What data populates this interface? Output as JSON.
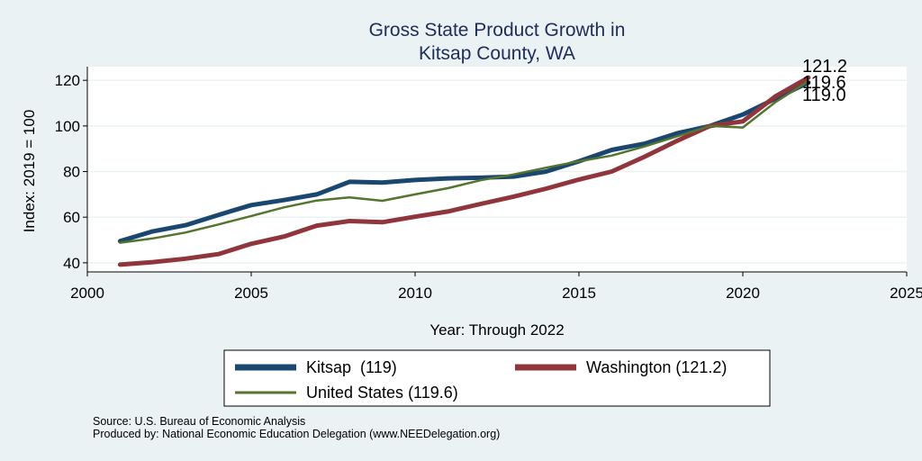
{
  "chart_data": {
    "type": "line",
    "title": [
      "Gross State Product Growth in",
      "Kitsap County, WA"
    ],
    "xlabel": "Year: Through 2022",
    "ylabel": "Index: 2019 = 100",
    "xlim": [
      2000,
      2025
    ],
    "ylim": [
      36,
      126
    ],
    "xticks": [
      2000,
      2005,
      2010,
      2015,
      2020,
      2025
    ],
    "yticks": [
      40,
      60,
      80,
      100,
      120
    ],
    "grid": true,
    "legend_position": "bottom",
    "series": [
      {
        "name": "Kitsap",
        "legend_label": "Kitsap  (119)",
        "color": "#1a476f",
        "x": [
          2001,
          2002,
          2003,
          2004,
          2005,
          2006,
          2007,
          2008,
          2009,
          2010,
          2011,
          2012,
          2013,
          2014,
          2015,
          2016,
          2017,
          2018,
          2019,
          2020,
          2021,
          2022
        ],
        "y": [
          49.5,
          53.8,
          56.5,
          61,
          65.3,
          67.5,
          70,
          75.5,
          75.2,
          76.3,
          77,
          77.3,
          77.8,
          80,
          84.5,
          89.5,
          92.2,
          96.8,
          100,
          105,
          112,
          119
        ]
      },
      {
        "name": "Washington",
        "legend_label": "Washington (121.2)",
        "color": "#90353b",
        "x": [
          2001,
          2002,
          2003,
          2004,
          2005,
          2006,
          2007,
          2008,
          2009,
          2010,
          2011,
          2012,
          2013,
          2014,
          2015,
          2016,
          2017,
          2018,
          2019,
          2020,
          2021,
          2022
        ],
        "y": [
          39.2,
          40.3,
          41.8,
          43.8,
          48.3,
          51.5,
          56.3,
          58.3,
          57.8,
          60.2,
          62.5,
          65.8,
          69,
          72.5,
          76.5,
          80,
          86.5,
          93.5,
          100,
          102,
          113,
          121.2
        ]
      },
      {
        "name": "United States",
        "legend_label": "United States (119.6)",
        "color": "#55752f",
        "x": [
          2001,
          2002,
          2003,
          2004,
          2005,
          2006,
          2007,
          2008,
          2009,
          2010,
          2011,
          2012,
          2013,
          2014,
          2015,
          2016,
          2017,
          2018,
          2019,
          2020,
          2021,
          2022
        ],
        "y": [
          48.8,
          50.7,
          53.3,
          56.8,
          60.5,
          64.3,
          67.3,
          68.7,
          67.2,
          70,
          72.7,
          76.2,
          78.7,
          81.7,
          84.5,
          87,
          91,
          95.5,
          100,
          99.3,
          110.5,
          119.6
        ]
      }
    ],
    "end_labels": [
      "121.2",
      "119.6",
      "119.0"
    ]
  },
  "notes": {
    "source": "Source: U.S. Bureau of Economic Analysis",
    "produced_by": "Produced by: National Economic Education Delegation (www.NEEDelegation.org)"
  }
}
